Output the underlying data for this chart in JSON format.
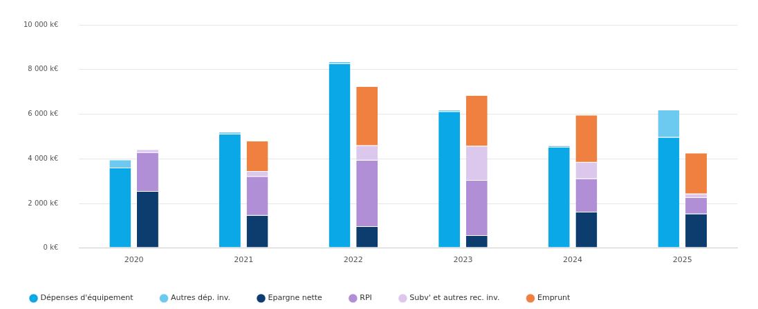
{
  "chart_data": {
    "type": "bar",
    "categories": [
      "2020",
      "2021",
      "2022",
      "2023",
      "2024",
      "2025"
    ],
    "series": [
      {
        "name": "Epargne nette",
        "color": "#0d3d6e",
        "base": [
          0,
          0,
          0,
          0,
          0,
          0
        ],
        "values": [
          2530,
          1450,
          950,
          550,
          1600,
          1520
        ]
      },
      {
        "name": "Dépenses d'équipement",
        "color": "#0aa8e6",
        "base": [
          0,
          0,
          0,
          0,
          0,
          0
        ],
        "values": [
          3580,
          5100,
          8250,
          6100,
          4500,
          4950
        ]
      },
      {
        "name": "Autres dép. inv.",
        "color": "#6cc9ef",
        "base": [
          3580,
          5100,
          8250,
          6100,
          4500,
          4950
        ],
        "values": [
          360,
          80,
          80,
          70,
          80,
          1220
        ]
      },
      {
        "name": "RPI",
        "color": "#b08fd6",
        "base": [
          2530,
          1450,
          950,
          550,
          1600,
          1520
        ],
        "values": [
          1740,
          1750,
          2970,
          2470,
          1500,
          730
        ]
      },
      {
        "name": "Subv' et autres rec. inv.",
        "color": "#dcc8ec",
        "base": [
          4270,
          3200,
          3920,
          3020,
          3100,
          2250
        ],
        "values": [
          130,
          220,
          660,
          1540,
          730,
          170
        ]
      },
      {
        "name": "Emprunt",
        "color": "#f08040",
        "base": [
          null,
          3420,
          4580,
          4560,
          3830,
          2420
        ],
        "values": [
          null,
          1360,
          2650,
          2270,
          2120,
          1830
        ]
      }
    ],
    "ylim": [
      0,
      10000
    ],
    "yticks": [
      {
        "value": 0,
        "label": "0 k€"
      },
      {
        "value": 2000,
        "label": "2 000 k€"
      },
      {
        "value": 4000,
        "label": "4 000 k€"
      },
      {
        "value": 6000,
        "label": "6 000 k€"
      },
      {
        "value": 8000,
        "label": "8 000 k€"
      },
      {
        "value": 10000,
        "label": "10 000 k€"
      }
    ],
    "grid": "y",
    "legend": "bottom"
  }
}
